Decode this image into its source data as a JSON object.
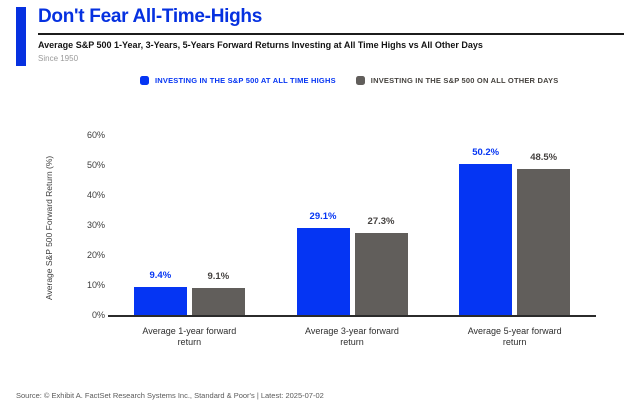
{
  "header": {
    "title": "Don't Fear All-Time-Highs",
    "subtitle": "Average S&P 500 1-Year, 3-Years, 5-Years Forward Returns Investing at All Time Highs vs All Other Days",
    "since": "Since 1950"
  },
  "legend": [
    {
      "label": "INVESTING IN THE S&P 500 AT ALL TIME HIGHS",
      "color": "#0535f3",
      "text_color": "#0535f3"
    },
    {
      "label": "INVESTING IN THE S&P 500 ON ALL OTHER DAYS",
      "color": "#615e5b",
      "text_color": "#474440"
    }
  ],
  "chart_data": {
    "type": "bar",
    "title": "Don't Fear All-Time-Highs",
    "subtitle": "Average S&P 500 1-Year, 3-Years, 5-Years Forward Returns Investing at All Time Highs vs All Other Days",
    "categories": [
      "Average 1-year forward return",
      "Average 3-year forward return",
      "Average 5-year forward return"
    ],
    "series": [
      {
        "name": "INVESTING IN THE S&P 500 AT ALL TIME HIGHS",
        "color": "#0535f3",
        "label_color": "#0535f3",
        "values": [
          9.4,
          29.1,
          50.2
        ],
        "labels": [
          "9.4%",
          "29.1%",
          "50.2%"
        ]
      },
      {
        "name": "INVESTING IN THE S&P 500 ON ALL OTHER DAYS",
        "color": "#615e5b",
        "label_color": "#454240",
        "values": [
          9.1,
          27.3,
          48.5
        ],
        "labels": [
          "9.1%",
          "27.3%",
          "48.5%"
        ]
      }
    ],
    "xlabel": "",
    "ylabel": "Average S&P 500 Forward Return (%)",
    "ylim": [
      0,
      60
    ],
    "ytick_step": 10,
    "ytick_suffix": "%",
    "grid": false,
    "legend_position": "top"
  },
  "footer": {
    "source": "Source: © Exhibit A. FactSet Research Systems Inc., Standard & Poor's | Latest: 2025-07-02"
  },
  "colors": {
    "accent_blue": "#0535f3",
    "title_blue": "#0631e0",
    "bar_gray": "#615e5b",
    "axis_line": "#2b2b2b"
  }
}
